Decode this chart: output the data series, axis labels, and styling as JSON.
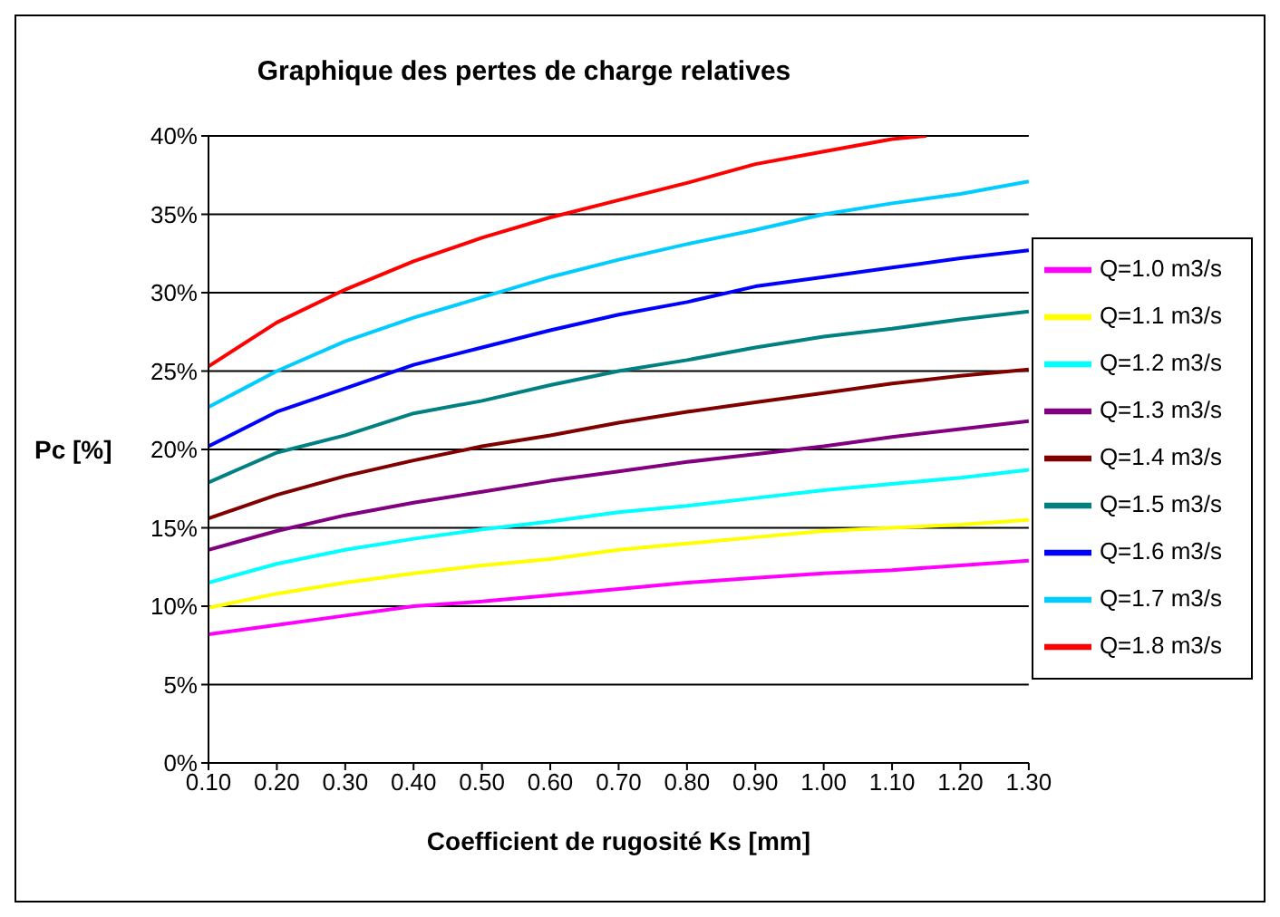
{
  "chart_data": {
    "type": "line",
    "title": "Graphique des pertes de charge relatives",
    "xlabel": "Coefficient de rugosité Ks [mm]",
    "ylabel": "Pc [%]",
    "x": [
      0.1,
      0.2,
      0.3,
      0.4,
      0.5,
      0.6,
      0.7,
      0.8,
      0.9,
      1.0,
      1.1,
      1.2,
      1.3
    ],
    "series": [
      {
        "name": "Q=1.0 m3/s",
        "color": "#ff00ff",
        "values": [
          8.2,
          8.8,
          9.4,
          10.0,
          10.3,
          10.7,
          11.1,
          11.5,
          11.8,
          12.1,
          12.3,
          12.6,
          12.9
        ]
      },
      {
        "name": "Q=1.1 m3/s",
        "color": "#ffff00",
        "values": [
          9.9,
          10.8,
          11.5,
          12.1,
          12.6,
          13.0,
          13.6,
          14.0,
          14.4,
          14.8,
          15.0,
          15.2,
          15.5
        ]
      },
      {
        "name": "Q=1.2 m3/s",
        "color": "#00ffff",
        "values": [
          11.5,
          12.7,
          13.6,
          14.3,
          14.9,
          15.4,
          16.0,
          16.4,
          16.9,
          17.4,
          17.8,
          18.2,
          18.7
        ]
      },
      {
        "name": "Q=1.3 m3/s",
        "color": "#800080",
        "values": [
          13.6,
          14.8,
          15.8,
          16.6,
          17.3,
          18.0,
          18.6,
          19.2,
          19.7,
          20.2,
          20.8,
          21.3,
          21.8
        ]
      },
      {
        "name": "Q=1.4 m3/s",
        "color": "#800000",
        "values": [
          15.6,
          17.1,
          18.3,
          19.3,
          20.2,
          20.9,
          21.7,
          22.4,
          23.0,
          23.6,
          24.2,
          24.7,
          25.1
        ]
      },
      {
        "name": "Q=1.5 m3/s",
        "color": "#008080",
        "values": [
          17.9,
          19.8,
          20.9,
          22.3,
          23.1,
          24.1,
          25.0,
          25.7,
          26.5,
          27.2,
          27.7,
          28.3,
          28.8
        ]
      },
      {
        "name": "Q=1.6 m3/s",
        "color": "#0000ff",
        "values": [
          20.2,
          22.4,
          23.9,
          25.4,
          26.5,
          27.6,
          28.6,
          29.4,
          30.4,
          31.0,
          31.6,
          32.2,
          32.7
        ]
      },
      {
        "name": "Q=1.7 m3/s",
        "color": "#00ccff",
        "values": [
          22.7,
          25.0,
          26.9,
          28.4,
          29.7,
          31.0,
          32.1,
          33.1,
          34.0,
          35.0,
          35.7,
          36.3,
          37.1
        ]
      },
      {
        "name": "Q=1.8 m3/s",
        "color": "#ff0000",
        "x": [
          0.1,
          0.2,
          0.3,
          0.4,
          0.5,
          0.6,
          0.7,
          0.8,
          0.9,
          1.0,
          1.1,
          1.15
        ],
        "values": [
          25.3,
          28.1,
          30.2,
          32.0,
          33.5,
          34.8,
          35.9,
          37.0,
          38.2,
          39.0,
          39.8,
          40.0
        ]
      }
    ],
    "xlim": [
      0.1,
      1.3
    ],
    "xticks": [
      {
        "value": 0.1,
        "label": "0.10"
      },
      {
        "value": 0.2,
        "label": "0.20"
      },
      {
        "value": 0.3,
        "label": "0.30"
      },
      {
        "value": 0.4,
        "label": "0.40"
      },
      {
        "value": 0.5,
        "label": "0.50"
      },
      {
        "value": 0.6,
        "label": "0.60"
      },
      {
        "value": 0.7,
        "label": "0.70"
      },
      {
        "value": 0.8,
        "label": "0.80"
      },
      {
        "value": 0.9,
        "label": "0.90"
      },
      {
        "value": 1.0,
        "label": "1.00"
      },
      {
        "value": 1.1,
        "label": "1.10"
      },
      {
        "value": 1.2,
        "label": "1.20"
      },
      {
        "value": 1.3,
        "label": "1.30"
      }
    ],
    "ylim": [
      0,
      40
    ],
    "yticks": [
      {
        "value": 0,
        "label": "0%"
      },
      {
        "value": 5,
        "label": "5%"
      },
      {
        "value": 10,
        "label": "10%"
      },
      {
        "value": 15,
        "label": "15%"
      },
      {
        "value": 20,
        "label": "20%"
      },
      {
        "value": 25,
        "label": "25%"
      },
      {
        "value": 30,
        "label": "30%"
      },
      {
        "value": 35,
        "label": "35%"
      },
      {
        "value": 40,
        "label": "40%"
      }
    ],
    "grid": "y",
    "legend": "right",
    "marker": "none",
    "line_style": "solid"
  }
}
